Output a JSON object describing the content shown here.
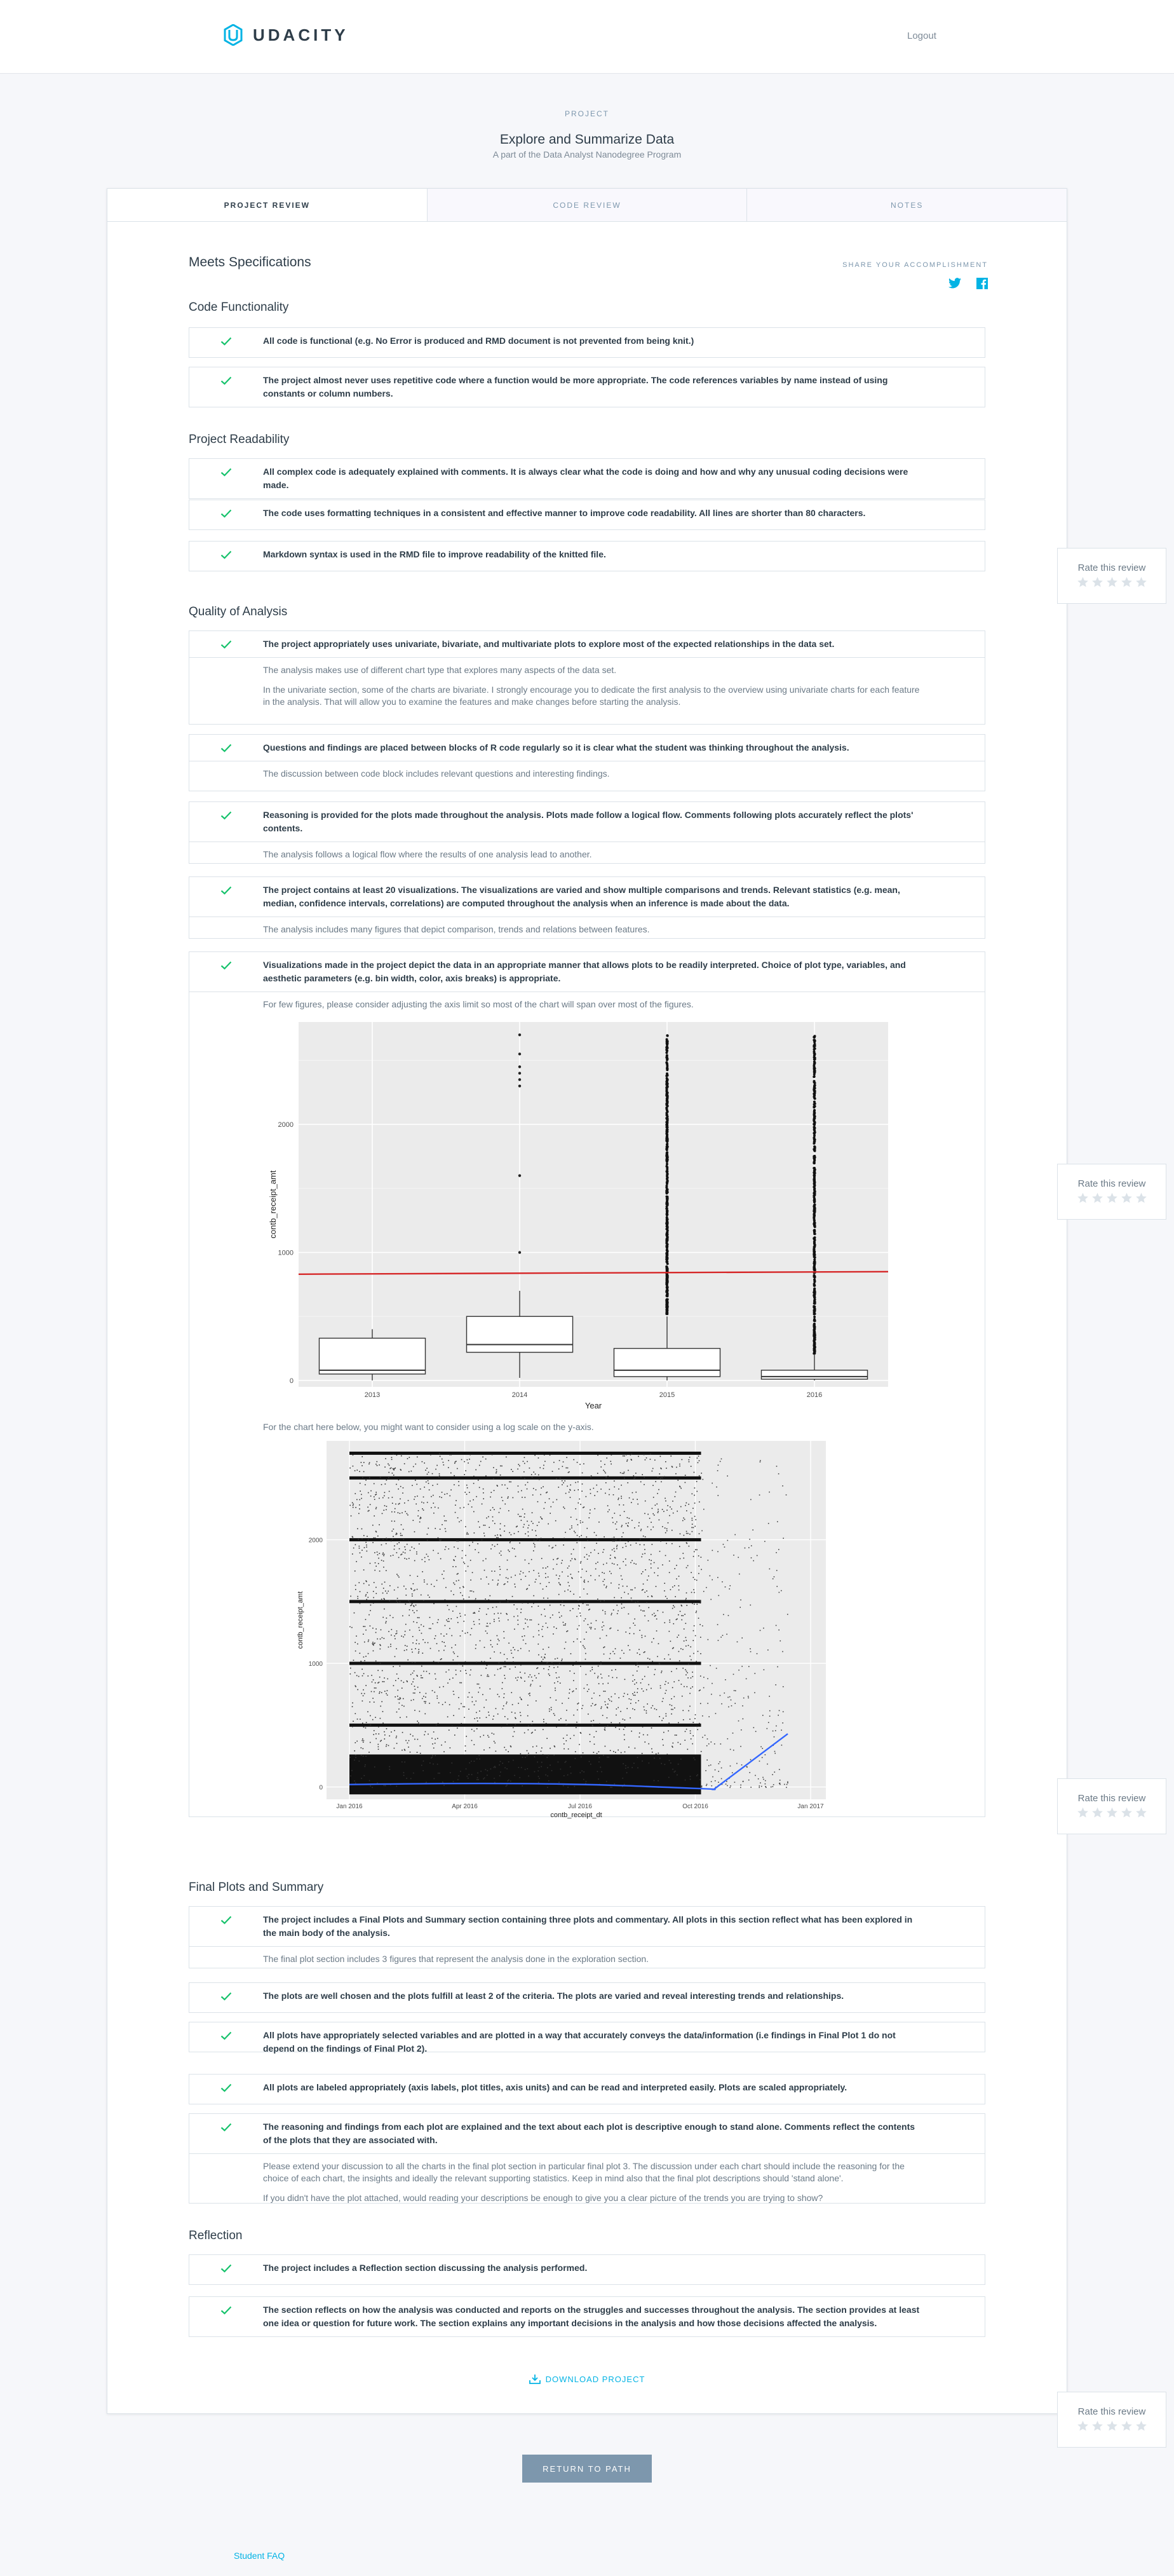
{
  "header": {
    "logo_text": "UDACITY",
    "logout": "Logout"
  },
  "project": {
    "eyebrow": "PROJECT",
    "title": "Explore and Summarize Data",
    "subtitle": "A part of the Data Analyst Nanodegree Program"
  },
  "tabs": [
    "PROJECT REVIEW",
    "CODE REVIEW",
    "NOTES"
  ],
  "status": "Meets Specifications",
  "share": {
    "label": "SHARE YOUR ACCOMPLISHMENT",
    "icons": [
      "twitter-icon",
      "facebook-icon"
    ]
  },
  "colors": {
    "accent": "#02b3e4",
    "check": "#15c26b",
    "red_line": "#d62728",
    "smooth": "#3366ff"
  },
  "sections": [
    {
      "title": "Code Functionality",
      "items": [
        {
          "text": "All code is functional (e.g. No Error is produced and RMD document is not prevented from being knit.)",
          "comments": []
        },
        {
          "text": "The project almost never uses repetitive code where a function would be more appropriate. The code references variables by name instead of using constants or column numbers.",
          "comments": []
        }
      ]
    },
    {
      "title": "Project Readability",
      "items": [
        {
          "text": "All complex code is adequately explained with comments. It is always clear what the code is doing and how and why any unusual coding decisions were made.",
          "comments": []
        },
        {
          "text": "The code uses formatting techniques in a consistent and effective manner to improve code readability. All lines are shorter than 80 characters.",
          "comments": []
        },
        {
          "text": "Markdown syntax is used in the RMD file to improve readability of the knitted file.",
          "comments": []
        }
      ]
    },
    {
      "title": "Quality of Analysis",
      "items": [
        {
          "text": "The project appropriately uses univariate, bivariate, and multivariate plots to explore most of the expected relationships in the data set.",
          "comments": [
            "The analysis makes use of different chart type that explores many aspects of the data set.",
            "In the univariate section, some of the charts are bivariate. I strongly encourage you to dedicate the first analysis to the overview using univariate charts for each feature in the analysis. That will allow you to examine the features and make changes before starting the analysis."
          ]
        },
        {
          "text": "Questions and findings are placed between blocks of R code regularly so it is clear what the student was thinking throughout the analysis.",
          "comments": [
            "The discussion between code block includes relevant questions and interesting findings."
          ]
        },
        {
          "text": "Reasoning is provided for the plots made throughout the analysis. Plots made follow a logical flow. Comments following plots accurately reflect the plots' contents.",
          "comments": [
            "The analysis follows a logical flow where the results of one analysis lead to another."
          ]
        },
        {
          "text": "The project contains at least 20 visualizations. The visualizations are varied and show multiple comparisons and trends. Relevant statistics (e.g. mean, median, confidence intervals, correlations) are computed throughout the analysis when an inference is made about the data.",
          "comments": [
            "The analysis includes many figures that depict comparison, trends and relations between features."
          ]
        },
        {
          "text": "Visualizations made in the project depict the data in an appropriate manner that allows plots to be readily interpreted. Choice of plot type, variables, and aesthetic parameters (e.g. bin width, color, axis breaks) is appropriate.",
          "comments": [
            "For few figures, please consider adjusting the axis limit so most of the chart will span over most of the figures.",
            "For the chart here below, you might want to consider using a log scale on the y-axis."
          ]
        }
      ]
    },
    {
      "title": "Final Plots and Summary",
      "items": [
        {
          "text": "The project includes a Final Plots and Summary section containing three plots and commentary. All plots in this section reflect what has been explored in the main body of the analysis.",
          "comments": [
            "The final plot section includes 3 figures that represent the analysis done in the exploration section."
          ]
        },
        {
          "text": "The plots are well chosen and the plots fulfill at least 2 of the criteria. The plots are varied and reveal interesting trends and relationships.",
          "comments": []
        },
        {
          "text": "All plots have appropriately selected variables and are plotted in a way that accurately conveys the data/information (i.e findings in Final Plot 1 do not depend on the findings of Final Plot 2).",
          "comments": []
        },
        {
          "text": "All plots are labeled appropriately (axis labels, plot titles, axis units) and can be read and interpreted easily. Plots are scaled appropriately.",
          "comments": []
        },
        {
          "text": "The reasoning and findings from each plot are explained and the text about each plot is descriptive enough to stand alone. Comments reflect the contents of the plots that they are associated with.",
          "comments": [
            "Please extend your discussion to all the charts in the final plot section in particular final plot 3. The discussion under each chart should include the reasoning for the choice of each chart, the insights and ideally the relevant supporting statistics. Keep in mind also that the final plot descriptions should 'stand alone'.",
            "If you didn't have the plot attached, would reading your descriptions be enough to give you a clear picture of the trends you are trying to show?"
          ]
        }
      ]
    },
    {
      "title": "Reflection",
      "items": [
        {
          "text": "The project includes a Reflection section discussing the analysis performed.",
          "comments": []
        },
        {
          "text": "The section reflects on how the analysis was conducted and reports on the struggles and successes throughout the analysis. The section provides at least one idea or question for future work. The section explains any important decisions in the analysis and how those decisions affected the analysis.",
          "comments": []
        }
      ]
    }
  ],
  "rate": {
    "label": "Rate this review",
    "stars": 5
  },
  "download": "DOWNLOAD PROJECT",
  "return_button": "RETURN TO PATH",
  "faq": "Student FAQ",
  "chart_data": [
    {
      "type": "box",
      "xlabel": "Year",
      "ylabel": "contb_receipt_amt",
      "categories": [
        "2013",
        "2014",
        "2015",
        "2016"
      ],
      "yticks": [
        0,
        1000,
        2000
      ],
      "ylim": [
        -50,
        2800
      ],
      "boxes": [
        {
          "x": "2013",
          "q1": 50,
          "median": 80,
          "q3": 330,
          "lower": 0,
          "upper": 400,
          "outliers": []
        },
        {
          "x": "2014",
          "q1": 220,
          "median": 280,
          "q3": 500,
          "lower": 20,
          "upper": 700,
          "outliers": [
            1000,
            1600,
            2300,
            2350,
            2400,
            2450,
            2550,
            2700
          ]
        },
        {
          "x": "2015",
          "q1": 30,
          "median": 80,
          "q3": 250,
          "lower": 0,
          "upper": 500,
          "outliers": "dense 520-2700"
        },
        {
          "x": "2016",
          "q1": 10,
          "median": 30,
          "q3": 80,
          "lower": 0,
          "upper": 200,
          "outliers": "dense 210-2700"
        }
      ],
      "reference_line": {
        "y": 830,
        "color": "red"
      }
    },
    {
      "type": "scatter",
      "xlabel": "contb_receipt_dt",
      "ylabel": "contb_receipt_amt",
      "xticks": [
        "Jan 2016",
        "Apr 2016",
        "Jul 2016",
        "Oct 2016",
        "Jan 2017"
      ],
      "yticks": [
        0,
        1000,
        2000
      ],
      "ylim": [
        -100,
        2800
      ],
      "dense_y_bands": [
        2700,
        2500,
        2000,
        1500,
        1000,
        500,
        250,
        100,
        0
      ],
      "smooth_line": true
    }
  ]
}
